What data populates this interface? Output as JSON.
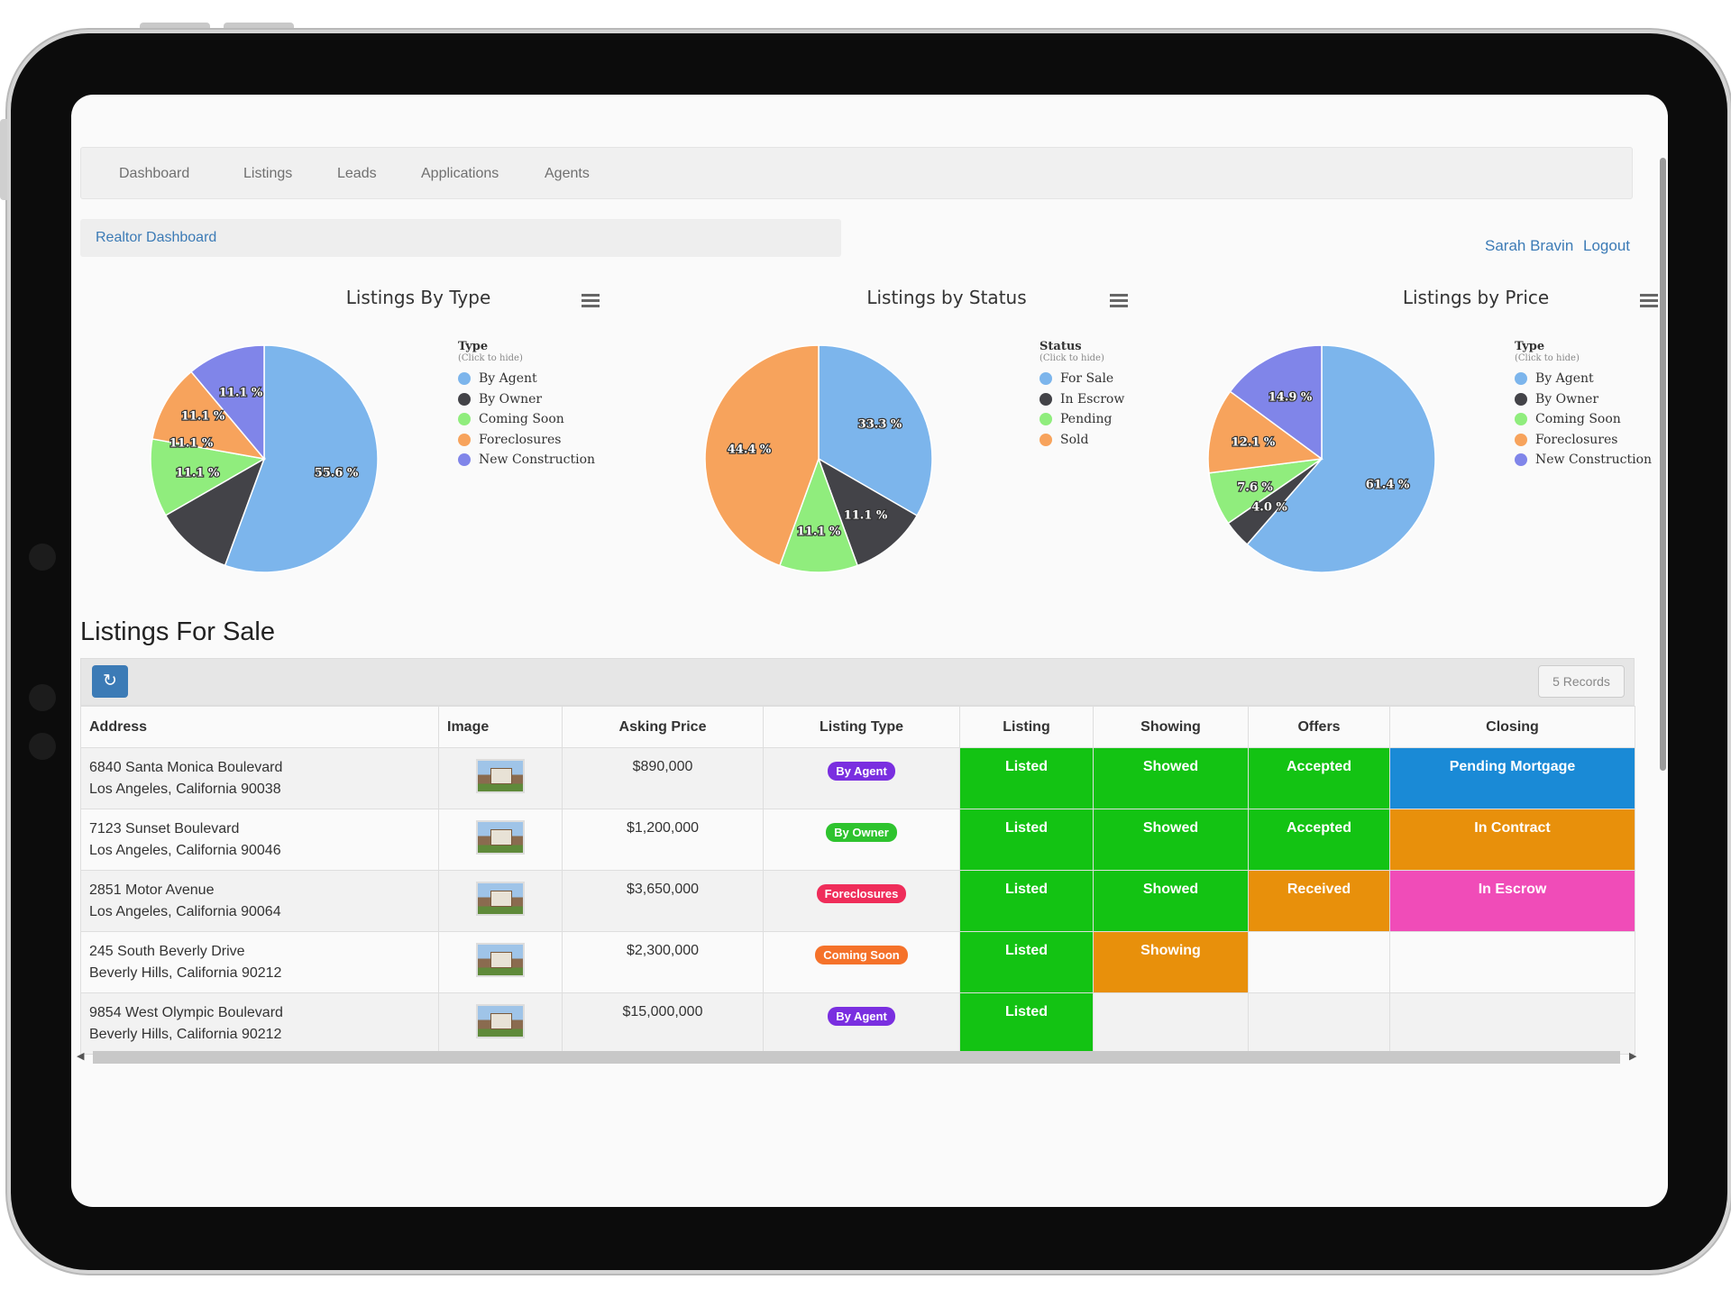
{
  "nav": {
    "items": [
      "Dashboard",
      "Listings",
      "Leads",
      "Applications",
      "Agents"
    ]
  },
  "breadcrumb": "Realtor Dashboard",
  "user": {
    "name": "Sarah Bravin",
    "logout": "Logout"
  },
  "colors": {
    "by_agent": "#7cb5ec",
    "by_owner": "#434348",
    "coming_soon": "#90ed7d",
    "foreclosures": "#f7a35c",
    "new_construction": "#8085e9",
    "link": "#3c7bb6",
    "green_stage": "#13c313",
    "orange_stage": "#e8900b",
    "blue_stage": "#1a8ad6",
    "pink_stage": "#f04cb8"
  },
  "chart_data": [
    {
      "type": "pie",
      "title": "Listings By Type",
      "legend_title": "Type",
      "legend_subtitle": "(Click to hide)",
      "labels": [
        "By Agent",
        "By Owner",
        "Coming Soon",
        "Foreclosures",
        "New Construction"
      ],
      "values": [
        55.6,
        11.1,
        11.1,
        11.1,
        11.1
      ],
      "data_labels": [
        "55.6 %",
        "11.1 %",
        "11.1 %",
        "11.1 %",
        "11.1 %"
      ],
      "colors": [
        "#7cb5ec",
        "#434348",
        "#90ed7d",
        "#f7a35c",
        "#8085e9"
      ],
      "legend_placement": "right"
    },
    {
      "type": "pie",
      "title": "Listings by Status",
      "legend_title": "Status",
      "legend_subtitle": "(Click to hide)",
      "labels": [
        "For Sale",
        "In Escrow",
        "Pending",
        "Sold"
      ],
      "values": [
        33.3,
        11.1,
        11.1,
        44.4
      ],
      "data_labels": [
        "33.3 %",
        "11.1 %",
        "11.1 %",
        "44.4 %"
      ],
      "colors": [
        "#7cb5ec",
        "#434348",
        "#90ed7d",
        "#f7a35c"
      ],
      "legend_placement": "right"
    },
    {
      "type": "pie",
      "title": "Listings by Price",
      "legend_title": "Type",
      "legend_subtitle": "(Click to hide)",
      "labels": [
        "By Agent",
        "By Owner",
        "Coming Soon",
        "Foreclosures",
        "New Construction"
      ],
      "values": [
        61.4,
        4.0,
        7.6,
        12.1,
        14.9
      ],
      "data_labels": [
        "61.4 %",
        "4.0 %",
        "7.6 %",
        "12.1 %",
        "14.9 %"
      ],
      "colors": [
        "#7cb5ec",
        "#434348",
        "#90ed7d",
        "#f7a35c",
        "#8085e9"
      ],
      "legend_placement": "right"
    }
  ],
  "listings": {
    "title": "Listings For Sale",
    "records": "5 Records",
    "columns": [
      "Address",
      "Image",
      "Asking Price",
      "Listing Type",
      "Listing",
      "Showing",
      "Offers",
      "Closing"
    ],
    "rows": [
      {
        "address1": "6840 Santa Monica Boulevard",
        "address2": "Los Angeles, California 90038",
        "price": "$890,000",
        "type": "By Agent",
        "type_color": "#7a2fe0",
        "listing": "Listed",
        "showing": "Showed",
        "offers": "Accepted",
        "closing": "Pending Mortgage",
        "listing_color": "#13c313",
        "showing_color": "#13c313",
        "offers_color": "#13c313",
        "closing_color": "#1a8ad6"
      },
      {
        "address1": "7123 Sunset Boulevard",
        "address2": "Los Angeles, California 90046",
        "price": "$1,200,000",
        "type": "By Owner",
        "type_color": "#2ec32e",
        "listing": "Listed",
        "showing": "Showed",
        "offers": "Accepted",
        "closing": "In Contract",
        "listing_color": "#13c313",
        "showing_color": "#13c313",
        "offers_color": "#13c313",
        "closing_color": "#e8900b"
      },
      {
        "address1": "2851 Motor Avenue",
        "address2": "Los Angeles, California 90064",
        "price": "$3,650,000",
        "type": "Foreclosures",
        "type_color": "#ef2d5a",
        "listing": "Listed",
        "showing": "Showed",
        "offers": "Received",
        "closing": "In Escrow",
        "listing_color": "#13c313",
        "showing_color": "#13c313",
        "offers_color": "#e8900b",
        "closing_color": "#f04cb8"
      },
      {
        "address1": "245 South Beverly Drive",
        "address2": "Beverly Hills, California 90212",
        "price": "$2,300,000",
        "type": "Coming Soon",
        "type_color": "#f5722a",
        "listing": "Listed",
        "showing": "Showing",
        "offers": "",
        "closing": "",
        "listing_color": "#13c313",
        "showing_color": "#e8900b",
        "offers_color": "",
        "closing_color": ""
      },
      {
        "address1": "9854 West Olympic Boulevard",
        "address2": "Beverly Hills, California 90212",
        "price": "$15,000,000",
        "type": "By Agent",
        "type_color": "#7a2fe0",
        "listing": "Listed",
        "showing": "",
        "offers": "",
        "closing": "",
        "listing_color": "#13c313",
        "showing_color": "",
        "offers_color": "",
        "closing_color": ""
      }
    ]
  }
}
